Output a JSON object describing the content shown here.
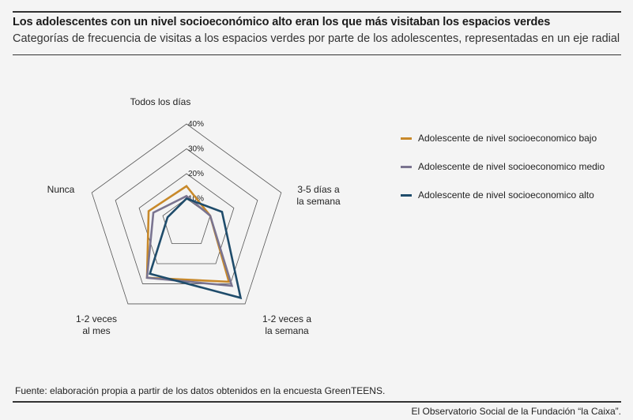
{
  "header": {
    "title": "Los adolescentes con un nivel socioeconómico alto eran los que más visitaban los espacios verdes",
    "subtitle": "Categorías de frecuencia de visitas a los espacios verdes por parte de los adolescentes, representadas en un eje radial"
  },
  "chart_data": {
    "type": "radar",
    "axes": [
      "Todos los días",
      "3-5 días a la semana",
      "1-2 veces a la semana",
      "1-2 veces al mes",
      "Nunca"
    ],
    "axis_labels_display": [
      "Todos los días",
      "3-5 días a\nla semana",
      "1-2 veces a\nla semana",
      "1-2 veces\nal mes",
      "Nunca"
    ],
    "ticks": [
      "10%",
      "20%",
      "30%",
      "40%"
    ],
    "tick_values": [
      10,
      20,
      30,
      40
    ],
    "rmax": 40,
    "grid": true,
    "legend_position": "right",
    "series": [
      {
        "name": "Adolescente de nivel socioeconomico bajo",
        "color": "#c8892a",
        "values": [
          15,
          10,
          29,
          27,
          16
        ]
      },
      {
        "name": "Adolescente de nivel socioeconomico medio",
        "color": "#7a7490",
        "values": [
          11,
          10,
          31,
          27,
          14
        ]
      },
      {
        "name": "Adolescente de nivel socioeconomico alto",
        "color": "#1f4c6b",
        "values": [
          10,
          15,
          37,
          25,
          8
        ]
      }
    ]
  },
  "footer": {
    "source": "Fuente: elaboración propia a partir de los datos obtenidos en la encuesta GreenTEENS.",
    "credit": "El Observatorio Social de la Fundación “la Caixa”."
  }
}
